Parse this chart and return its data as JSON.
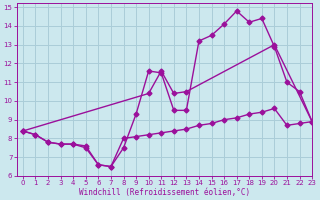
{
  "line1_x": [
    0,
    1,
    2,
    3,
    4,
    5,
    6,
    7,
    8,
    9,
    10,
    11,
    12,
    13,
    14,
    15,
    16,
    17,
    18,
    19,
    20,
    21,
    22,
    23
  ],
  "line1_y": [
    8.4,
    8.2,
    7.8,
    7.7,
    7.7,
    7.5,
    6.6,
    6.5,
    7.5,
    9.3,
    11.6,
    11.5,
    9.5,
    9.5,
    13.2,
    13.5,
    14.1,
    14.8,
    14.2,
    14.4,
    12.9,
    11.0,
    10.5,
    8.9
  ],
  "line2_x": [
    0,
    1,
    2,
    3,
    4,
    5,
    6,
    7,
    8,
    9,
    10,
    11,
    12,
    13,
    14,
    15,
    16,
    17,
    18,
    19,
    20,
    21,
    22,
    23
  ],
  "line2_y": [
    8.4,
    8.2,
    7.8,
    7.7,
    7.7,
    7.6,
    6.6,
    6.5,
    8.0,
    8.1,
    8.2,
    8.3,
    8.4,
    8.5,
    8.7,
    8.8,
    9.0,
    9.1,
    9.3,
    9.4,
    9.6,
    8.7,
    8.8,
    8.9
  ],
  "line3_x": [
    0,
    10,
    11,
    12,
    13,
    20,
    23
  ],
  "line3_y": [
    8.4,
    10.4,
    11.6,
    10.4,
    10.5,
    13.0,
    8.9
  ],
  "bg_color": "#cce8ee",
  "grid_color": "#aacdd8",
  "line_color": "#9b109b",
  "xlabel": "Windchill (Refroidissement éolien,°C)",
  "xlim": [
    -0.5,
    23
  ],
  "ylim": [
    6,
    15.2
  ],
  "yticks": [
    6,
    7,
    8,
    9,
    10,
    11,
    12,
    13,
    14,
    15
  ],
  "xticks": [
    0,
    1,
    2,
    3,
    4,
    5,
    6,
    7,
    8,
    9,
    10,
    11,
    12,
    13,
    14,
    15,
    16,
    17,
    18,
    19,
    20,
    21,
    22,
    23
  ],
  "marker": "D",
  "markersize": 2.5,
  "linewidth": 1.0
}
